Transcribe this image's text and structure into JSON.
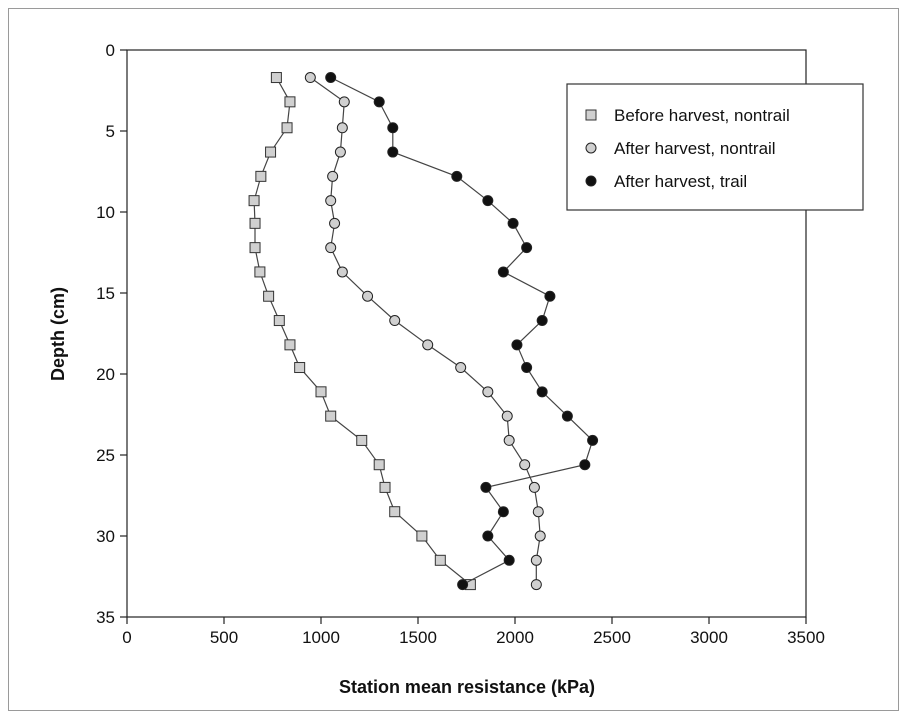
{
  "chart_data": {
    "type": "line",
    "title": "",
    "xlabel": "Station mean resistance (kPa)",
    "ylabel": "Depth (cm)",
    "xlim": [
      0,
      3500
    ],
    "ylim": [
      0,
      35
    ],
    "y_inverted": true,
    "xticks": [
      0,
      500,
      1000,
      1500,
      2000,
      2500,
      3000,
      3500
    ],
    "yticks": [
      0,
      5,
      10,
      15,
      20,
      25,
      30,
      35
    ],
    "grid": false,
    "legend_position": "top-right",
    "series": [
      {
        "name": "Before harvest, nontrail",
        "marker": "square",
        "color": "#d0d0d0",
        "points": [
          [
            770,
            1.7
          ],
          [
            840,
            3.2
          ],
          [
            825,
            4.8
          ],
          [
            740,
            6.3
          ],
          [
            690,
            7.8
          ],
          [
            655,
            9.3
          ],
          [
            660,
            10.7
          ],
          [
            660,
            12.2
          ],
          [
            685,
            13.7
          ],
          [
            730,
            15.2
          ],
          [
            785,
            16.7
          ],
          [
            840,
            18.2
          ],
          [
            890,
            19.6
          ],
          [
            1000,
            21.1
          ],
          [
            1050,
            22.6
          ],
          [
            1210,
            24.1
          ],
          [
            1300,
            25.6
          ],
          [
            1330,
            27.0
          ],
          [
            1380,
            28.5
          ],
          [
            1520,
            30.0
          ],
          [
            1615,
            31.5
          ],
          [
            1770,
            33.0
          ]
        ]
      },
      {
        "name": "After harvest, nontrail",
        "marker": "circle",
        "color": "#d0d0d0",
        "points": [
          [
            945,
            1.7
          ],
          [
            1120,
            3.2
          ],
          [
            1110,
            4.8
          ],
          [
            1100,
            6.3
          ],
          [
            1060,
            7.8
          ],
          [
            1050,
            9.3
          ],
          [
            1070,
            10.7
          ],
          [
            1050,
            12.2
          ],
          [
            1110,
            13.7
          ],
          [
            1240,
            15.2
          ],
          [
            1380,
            16.7
          ],
          [
            1550,
            18.2
          ],
          [
            1720,
            19.6
          ],
          [
            1860,
            21.1
          ],
          [
            1960,
            22.6
          ],
          [
            1970,
            24.1
          ],
          [
            2050,
            25.6
          ],
          [
            2100,
            27.0
          ],
          [
            2120,
            28.5
          ],
          [
            2130,
            30.0
          ],
          [
            2110,
            31.5
          ],
          [
            2110,
            33.0
          ]
        ]
      },
      {
        "name": "After harvest, trail",
        "marker": "circle",
        "color": "#111111",
        "points": [
          [
            1050,
            1.7
          ],
          [
            1300,
            3.2
          ],
          [
            1370,
            4.8
          ],
          [
            1370,
            6.3
          ],
          [
            1700,
            7.8
          ],
          [
            1860,
            9.3
          ],
          [
            1990,
            10.7
          ],
          [
            2060,
            12.2
          ],
          [
            1940,
            13.7
          ],
          [
            2180,
            15.2
          ],
          [
            2140,
            16.7
          ],
          [
            2010,
            18.2
          ],
          [
            2060,
            19.6
          ],
          [
            2140,
            21.1
          ],
          [
            2270,
            22.6
          ],
          [
            2400,
            24.1
          ],
          [
            2360,
            25.6
          ],
          [
            1850,
            27.0
          ],
          [
            1940,
            28.5
          ],
          [
            1860,
            30.0
          ],
          [
            1970,
            31.5
          ],
          [
            1730,
            33.0
          ]
        ]
      }
    ]
  }
}
